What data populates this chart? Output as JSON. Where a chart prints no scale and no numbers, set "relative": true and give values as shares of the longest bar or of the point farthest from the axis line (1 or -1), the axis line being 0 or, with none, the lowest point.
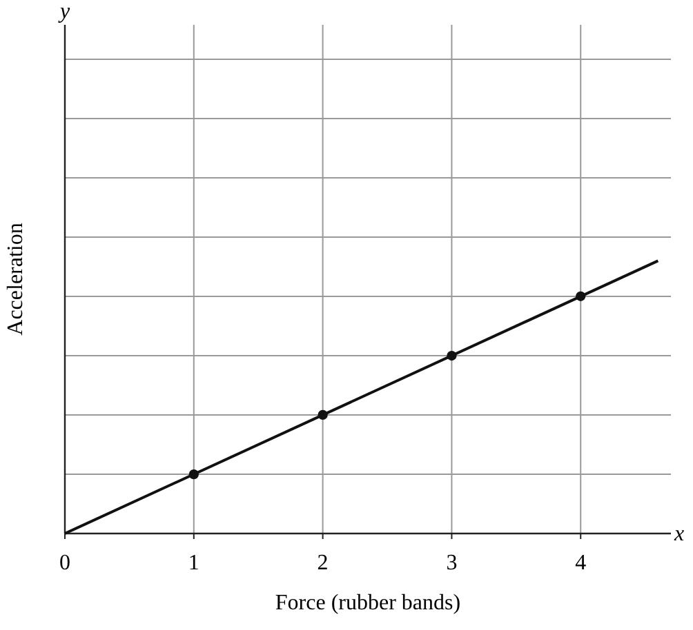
{
  "chart_data": {
    "type": "line",
    "relative": true,
    "xlabel": "Force (rubber bands)",
    "ylabel": "Acceleration",
    "annotations": [
      "x",
      "y"
    ],
    "xlim": [
      0,
      4.7
    ],
    "xticks": [
      0,
      1,
      2,
      3,
      4
    ],
    "grid": true,
    "series": [
      {
        "x": [
          0,
          4.6
        ],
        "values": [
          0,
          1
        ],
        "color": "#111111",
        "marker": "none",
        "line_style": "solid"
      },
      {
        "type": "scatter",
        "x": [
          1,
          2,
          3,
          4
        ],
        "values": [
          0.217,
          0.435,
          0.652,
          0.87
        ],
        "color": "#111111",
        "marker": "circle"
      }
    ]
  }
}
